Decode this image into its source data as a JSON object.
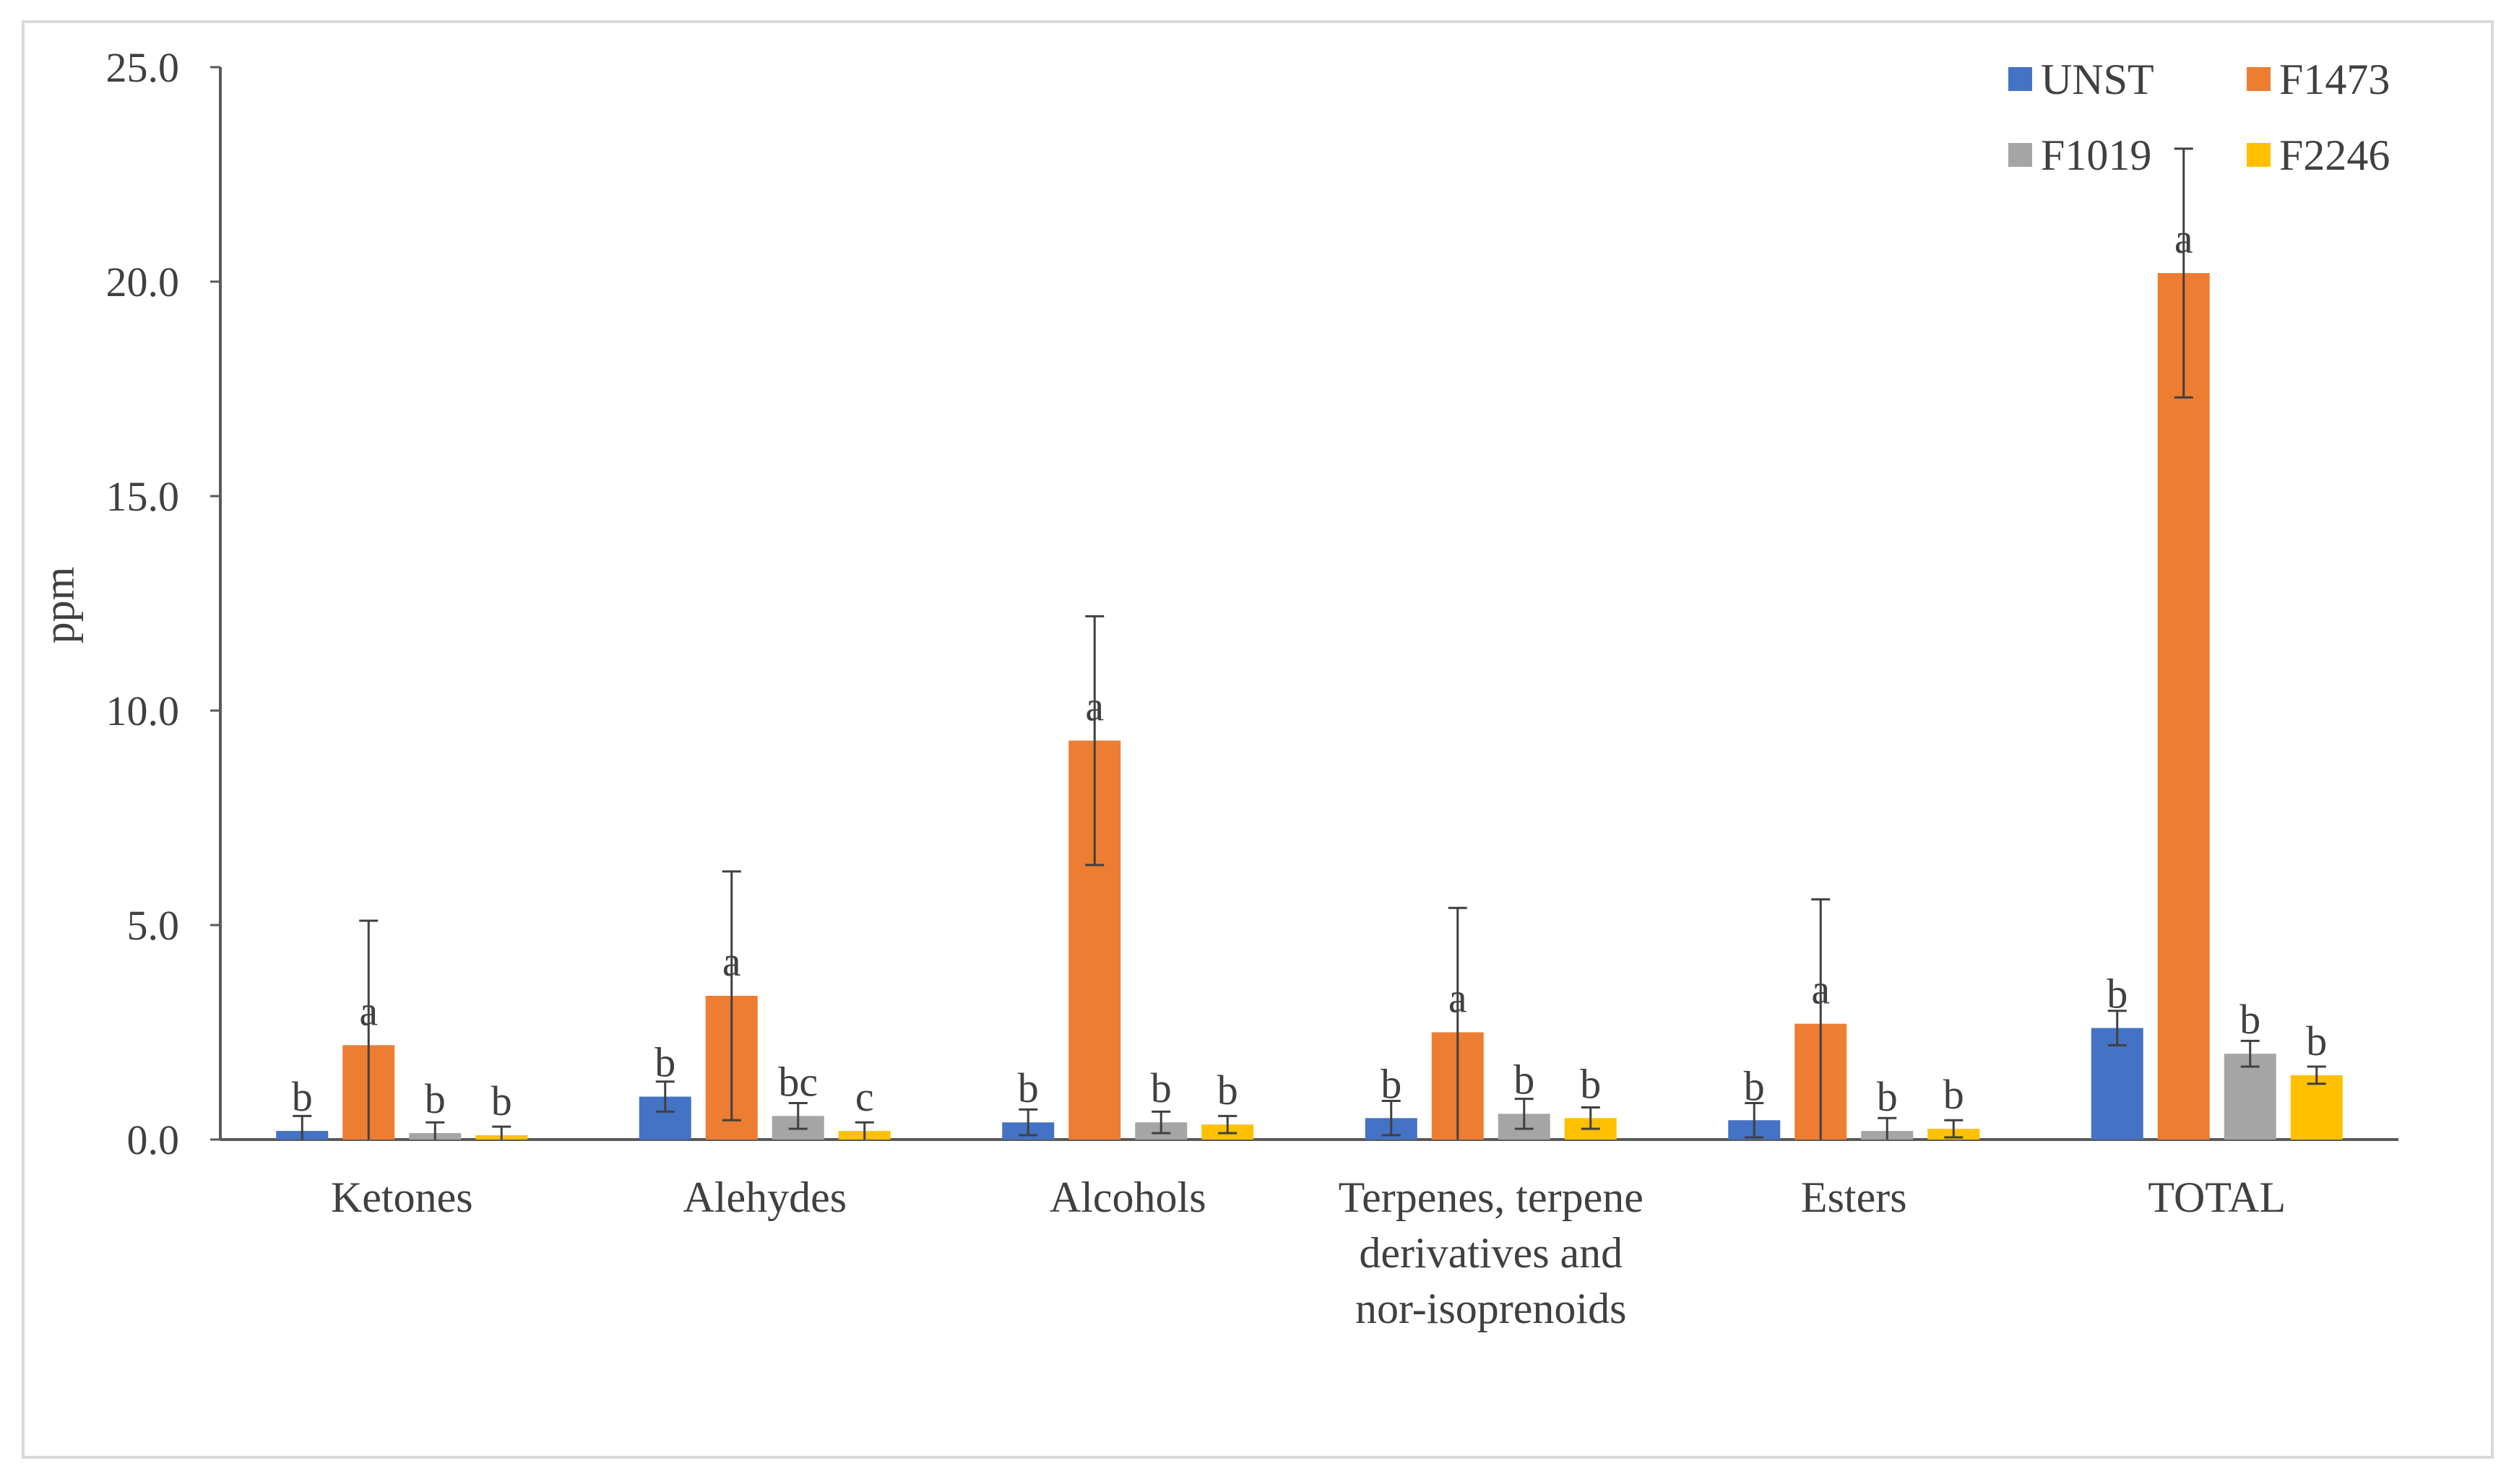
{
  "chart_data": {
    "type": "bar",
    "title": "",
    "xlabel": "",
    "ylabel": "ppm",
    "ylim": [
      0,
      25
    ],
    "yticks": [
      "0.0",
      "5.0",
      "10.0",
      "15.0",
      "20.0",
      "25.0"
    ],
    "grid": false,
    "legend_position": "top-right",
    "categories": [
      [
        "Ketones"
      ],
      [
        "Alehydes"
      ],
      [
        "Alcohols"
      ],
      [
        "Terpenes, terpene",
        "derivatives and",
        "nor-isoprenoids"
      ],
      [
        "Esters"
      ],
      [
        "TOTAL"
      ]
    ],
    "series": [
      {
        "name": "UNST",
        "color": "#4472C4",
        "values": [
          0.2,
          1.0,
          0.4,
          0.5,
          0.45,
          2.6
        ],
        "errors": [
          0.35,
          0.35,
          0.3,
          0.4,
          0.4,
          0.4
        ],
        "labels": [
          "b",
          "b",
          "b",
          "b",
          "b",
          "b"
        ]
      },
      {
        "name": "F1473",
        "color": "#ED7D31",
        "values": [
          2.2,
          3.35,
          9.3,
          2.5,
          2.7,
          20.2
        ],
        "errors": [
          2.9,
          2.9,
          2.9,
          2.9,
          2.9,
          2.9
        ],
        "labels": [
          "a",
          "a",
          "a",
          "a",
          "a",
          "a"
        ]
      },
      {
        "name": "F1019",
        "color": "#A5A5A5",
        "values": [
          0.15,
          0.55,
          0.4,
          0.6,
          0.2,
          2.0
        ],
        "errors": [
          0.25,
          0.3,
          0.25,
          0.35,
          0.3,
          0.3
        ],
        "labels": [
          "b",
          "bc",
          "b",
          "b",
          "b",
          "b"
        ]
      },
      {
        "name": "F2246",
        "color": "#FFC000",
        "values": [
          0.1,
          0.2,
          0.35,
          0.5,
          0.25,
          1.5
        ],
        "errors": [
          0.2,
          0.2,
          0.2,
          0.25,
          0.2,
          0.2
        ],
        "labels": [
          "b",
          "c",
          "b",
          "b",
          "b",
          "b"
        ]
      }
    ]
  }
}
